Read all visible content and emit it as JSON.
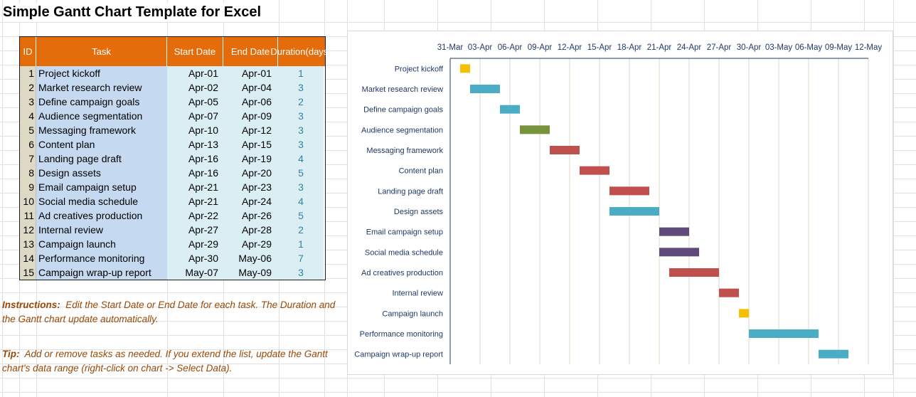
{
  "title": "Simple Gantt Chart Template for Excel",
  "table": {
    "headers": {
      "id": "ID",
      "task": "Task",
      "start": "Start Date",
      "end": "End Date",
      "duration_line1": "Duration",
      "duration_line2": "(days)"
    },
    "rows": [
      {
        "id": "1",
        "task": "Project kickoff",
        "start": "Apr-01",
        "end": "Apr-01",
        "duration": "1"
      },
      {
        "id": "2",
        "task": "Market research review",
        "start": "Apr-02",
        "end": "Apr-04",
        "duration": "3"
      },
      {
        "id": "3",
        "task": "Define campaign goals",
        "start": "Apr-05",
        "end": "Apr-06",
        "duration": "2"
      },
      {
        "id": "4",
        "task": "Audience segmentation",
        "start": "Apr-07",
        "end": "Apr-09",
        "duration": "3"
      },
      {
        "id": "5",
        "task": "Messaging framework",
        "start": "Apr-10",
        "end": "Apr-12",
        "duration": "3"
      },
      {
        "id": "6",
        "task": "Content plan",
        "start": "Apr-13",
        "end": "Apr-15",
        "duration": "3"
      },
      {
        "id": "7",
        "task": "Landing page draft",
        "start": "Apr-16",
        "end": "Apr-19",
        "duration": "4"
      },
      {
        "id": "8",
        "task": "Design assets",
        "start": "Apr-16",
        "end": "Apr-20",
        "duration": "5"
      },
      {
        "id": "9",
        "task": "Email campaign setup",
        "start": "Apr-21",
        "end": "Apr-23",
        "duration": "3"
      },
      {
        "id": "10",
        "task": "Social media schedule",
        "start": "Apr-21",
        "end": "Apr-24",
        "duration": "4"
      },
      {
        "id": "11",
        "task": "Ad creatives production",
        "start": "Apr-22",
        "end": "Apr-26",
        "duration": "5"
      },
      {
        "id": "12",
        "task": "Internal review",
        "start": "Apr-27",
        "end": "Apr-28",
        "duration": "2"
      },
      {
        "id": "13",
        "task": "Campaign launch",
        "start": "Apr-29",
        "end": "Apr-29",
        "duration": "1"
      },
      {
        "id": "14",
        "task": "Performance monitoring",
        "start": "Apr-30",
        "end": "May-06",
        "duration": "7"
      },
      {
        "id": "15",
        "task": "Campaign wrap-up report",
        "start": "May-07",
        "end": "May-09",
        "duration": "3"
      }
    ]
  },
  "instructions": {
    "label": "Instructions:",
    "text": "Edit the Start Date or End Date for each task. The Duration and the Gantt chart update automatically."
  },
  "tip": {
    "label": "Tip:",
    "text": "Add or remove tasks as needed. If you extend the list, update the Gantt chart's data range (right-click on chart -> Select Data)."
  },
  "colors": {
    "header_orange": "#e46c0a",
    "task_column_blue": "#c5d9f1",
    "date_column_cyan": "#daeef3",
    "id_column_tan": "#ddd9c4",
    "note_brown": "#984807",
    "duration_teal": "#31859c"
  },
  "chart_data": {
    "type": "gantt",
    "title": "",
    "x_axis": {
      "type": "date",
      "min": "31-Mar",
      "max": "12-May",
      "tick_step_days": 3,
      "tick_labels": [
        "31-Mar",
        "03-Apr",
        "06-Apr",
        "09-Apr",
        "12-Apr",
        "15-Apr",
        "18-Apr",
        "21-Apr",
        "24-Apr",
        "27-Apr",
        "30-Apr",
        "03-May",
        "06-May",
        "09-May",
        "12-May"
      ],
      "position": "top",
      "gridlines": true
    },
    "tasks": [
      {
        "task": "Project kickoff",
        "start": "01-Apr",
        "duration": 1,
        "color": "#f5c000"
      },
      {
        "task": "Market research review",
        "start": "02-Apr",
        "duration": 3,
        "color": "#4bacc6"
      },
      {
        "task": "Define campaign goals",
        "start": "05-Apr",
        "duration": 2,
        "color": "#4bacc6"
      },
      {
        "task": "Audience segmentation",
        "start": "07-Apr",
        "duration": 3,
        "color": "#77933c"
      },
      {
        "task": "Messaging framework",
        "start": "10-Apr",
        "duration": 3,
        "color": "#c0504d"
      },
      {
        "task": "Content plan",
        "start": "13-Apr",
        "duration": 3,
        "color": "#c0504d"
      },
      {
        "task": "Landing page draft",
        "start": "16-Apr",
        "duration": 4,
        "color": "#c0504d"
      },
      {
        "task": "Design assets",
        "start": "16-Apr",
        "duration": 5,
        "color": "#4bacc6"
      },
      {
        "task": "Email campaign setup",
        "start": "21-Apr",
        "duration": 3,
        "color": "#604a7b"
      },
      {
        "task": "Social media schedule",
        "start": "21-Apr",
        "duration": 4,
        "color": "#604a7b"
      },
      {
        "task": "Ad creatives production",
        "start": "22-Apr",
        "duration": 5,
        "color": "#c0504d"
      },
      {
        "task": "Internal review",
        "start": "27-Apr",
        "duration": 2,
        "color": "#c0504d"
      },
      {
        "task": "Campaign launch",
        "start": "29-Apr",
        "duration": 1,
        "color": "#f5c000"
      },
      {
        "task": "Performance monitoring",
        "start": "30-Apr",
        "duration": 7,
        "color": "#4bacc6"
      },
      {
        "task": "Campaign wrap-up report",
        "start": "07-May",
        "duration": 3,
        "color": "#4bacc6"
      }
    ]
  }
}
